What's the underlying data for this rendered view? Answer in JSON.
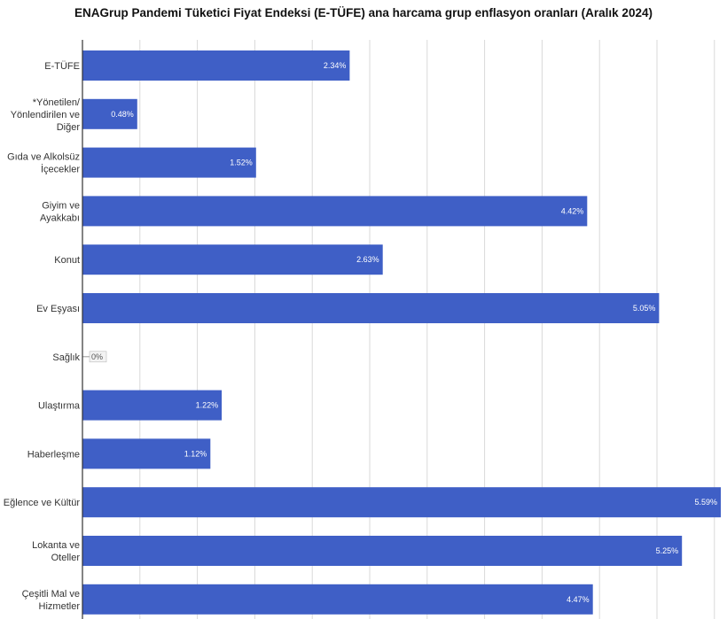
{
  "chart_data": {
    "type": "bar",
    "orientation": "horizontal",
    "title": "ENAGrup Pandemi Tüketici Fiyat Endeksi (E-TÜFE) ana harcama grup enflasyon oranları (Aralık 2024)",
    "categories": [
      [
        "E-TÜFE"
      ],
      [
        "*Yönetilen/",
        "Yönlendirilen ve",
        "Diğer"
      ],
      [
        "Gıda ve Alkolsüz",
        "İçecekler"
      ],
      [
        "Giyim ve",
        "Ayakkabı"
      ],
      [
        "Konut"
      ],
      [
        "Ev Eşyası"
      ],
      [
        "Sağlık"
      ],
      [
        "Ulaştırma"
      ],
      [
        "Haberleşme"
      ],
      [
        "Eğlence ve Kültür"
      ],
      [
        "Lokanta ve",
        "Oteller"
      ],
      [
        "Çeşitli Mal ve",
        "Hizmetler"
      ]
    ],
    "values": [
      2.34,
      0.48,
      1.52,
      4.42,
      2.63,
      5.05,
      0,
      1.22,
      1.12,
      5.59,
      5.25,
      4.47
    ],
    "value_labels": [
      "2.34%",
      "0.48%",
      "1.52%",
      "4.42%",
      "2.63%",
      "5.05%",
      "0%",
      "1.22%",
      "1.12%",
      "5.59%",
      "5.25%",
      "4.47%"
    ],
    "xlim": [
      0,
      5.59
    ],
    "grid": true,
    "bar_color": "#3f5fc6",
    "xlabel": "",
    "ylabel": ""
  }
}
